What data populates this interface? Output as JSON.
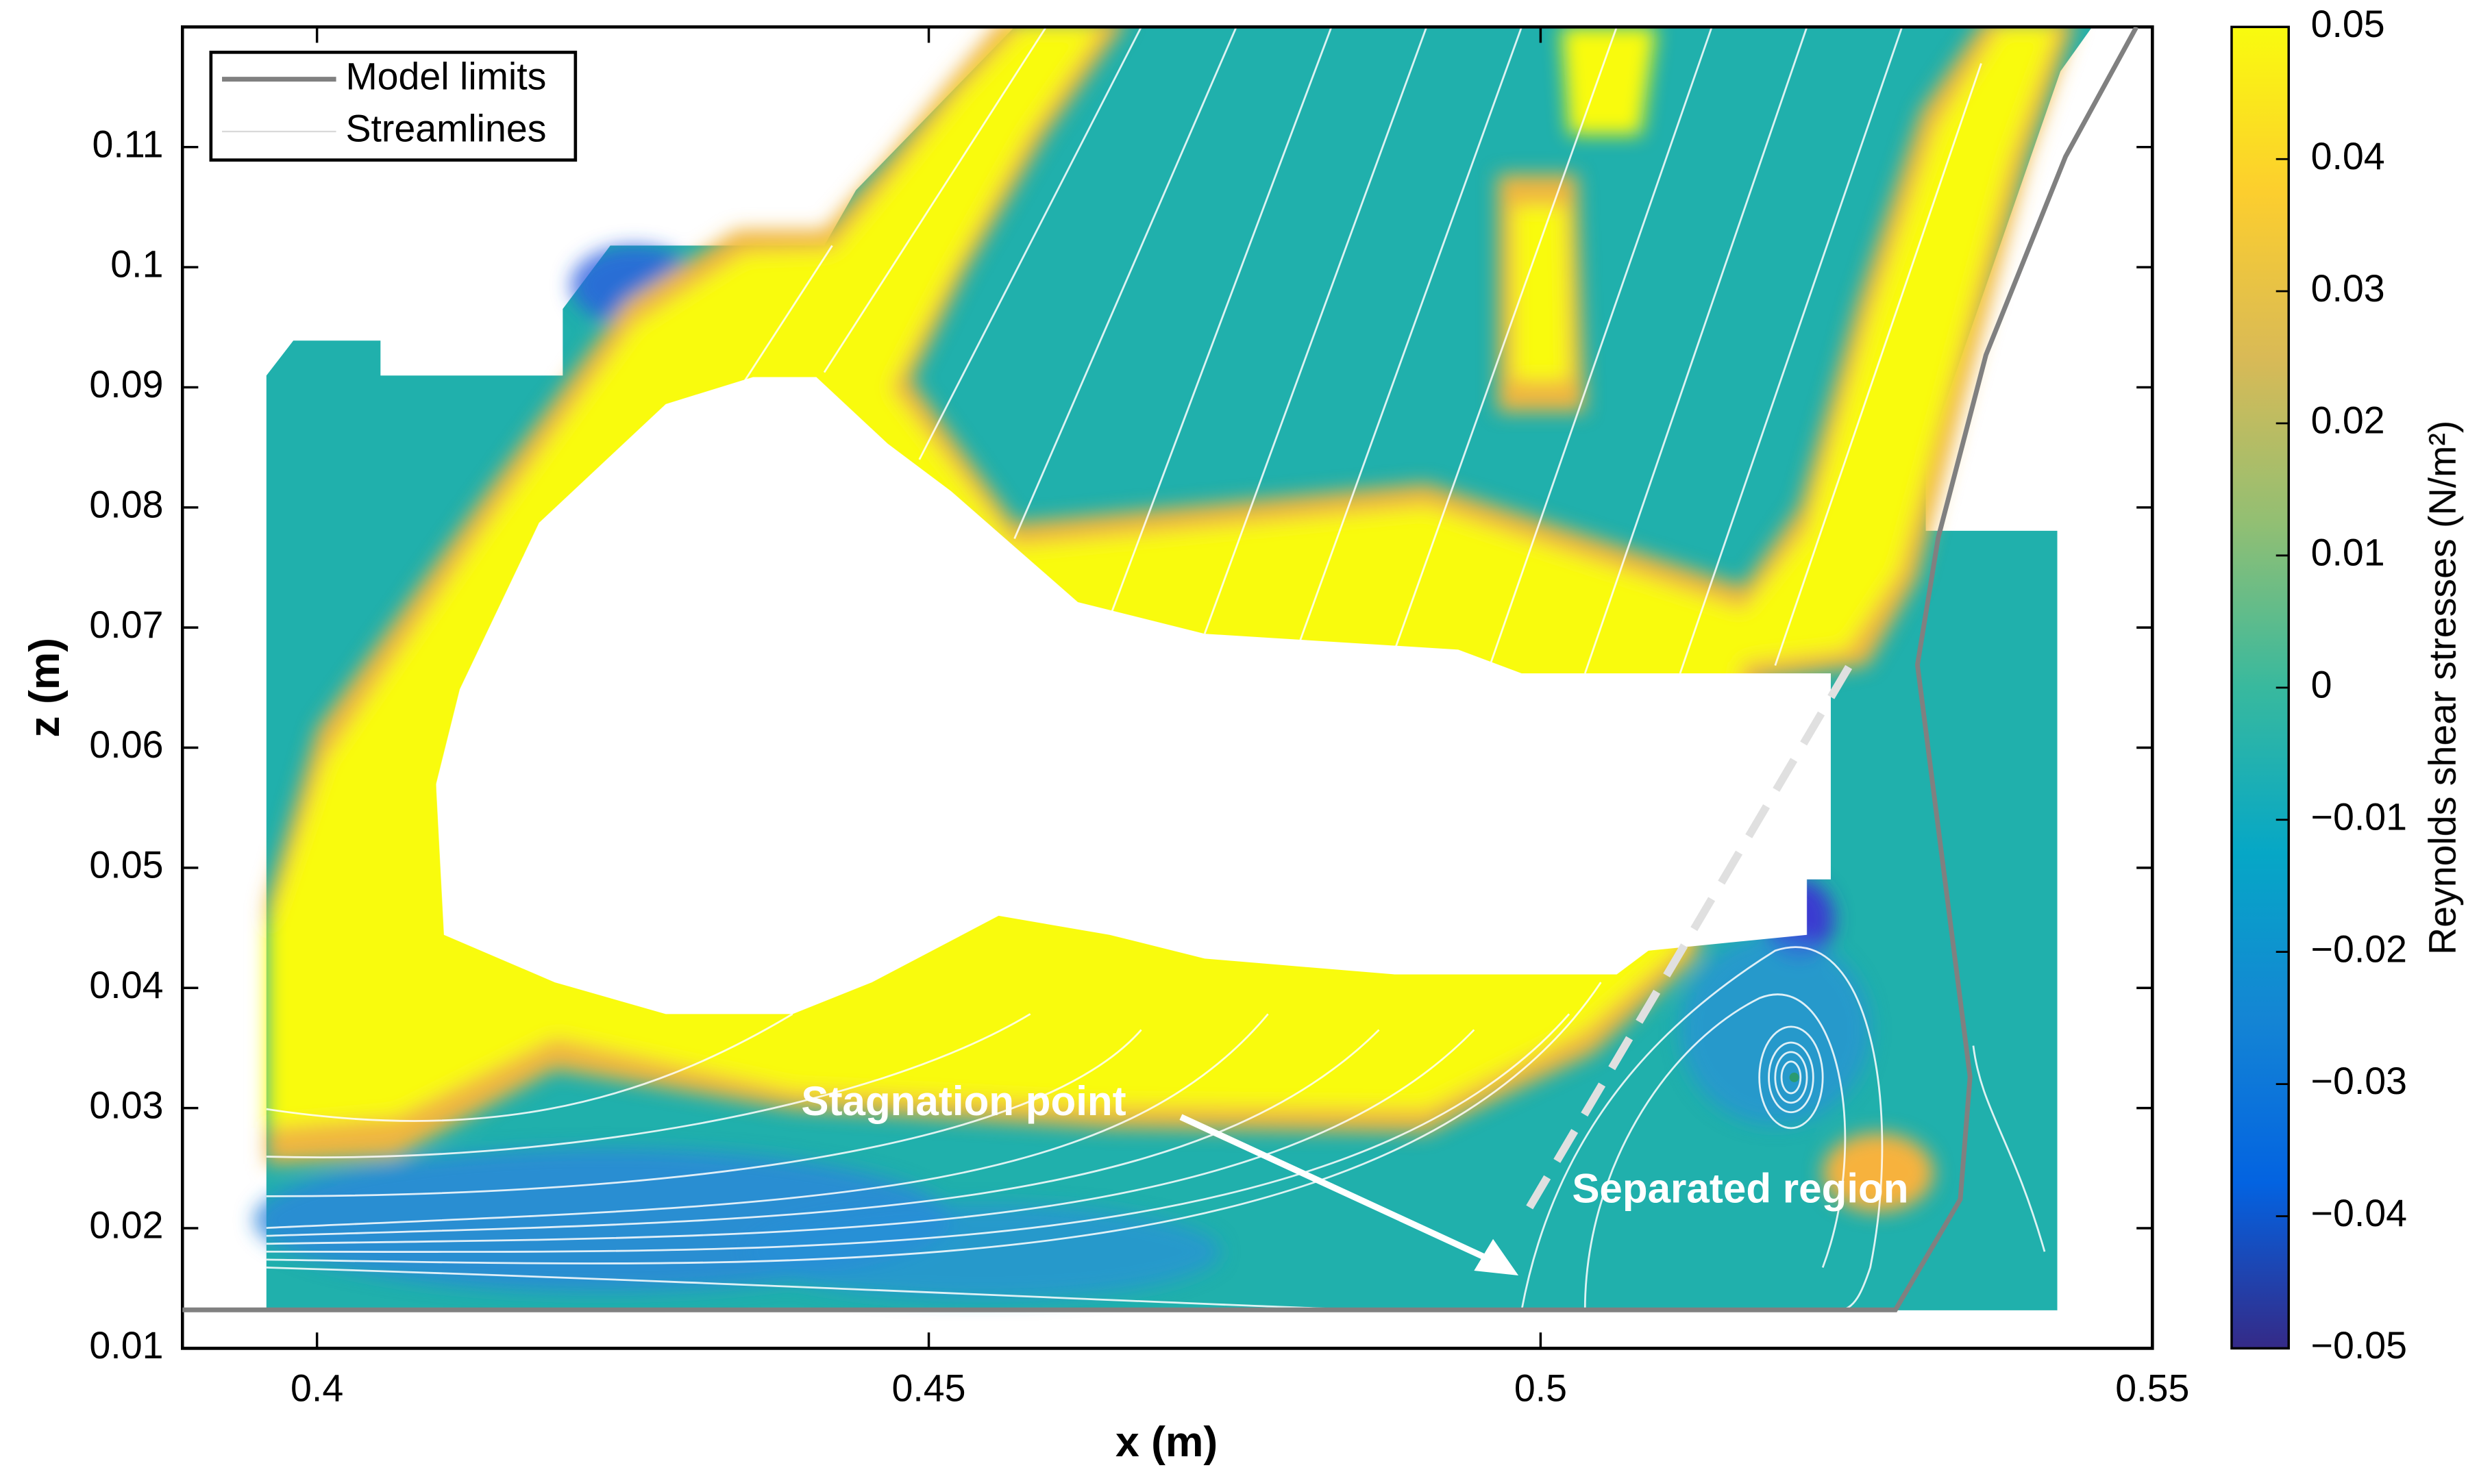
{
  "chart_data": {
    "type": "heatmap",
    "xlabel": "x (m)",
    "ylabel": "z (m)",
    "xlim": [
      0.389,
      0.55
    ],
    "xticks": [
      0.4,
      0.45,
      0.5,
      0.55
    ],
    "ylim": [
      0.01,
      0.12
    ],
    "yticks": [
      0.01,
      0.02,
      0.03,
      0.04,
      0.05,
      0.06,
      0.07,
      0.08,
      0.09,
      0.1,
      0.11
    ],
    "colorbar": {
      "label": "Reynolds shear stresses (N/m²)",
      "clim": [
        -0.05,
        0.05
      ],
      "ticks": [
        {
          "value": -0.05,
          "label": "−0.05"
        },
        {
          "value": -0.04,
          "label": "−0.04"
        },
        {
          "value": -0.03,
          "label": "−0.03"
        },
        {
          "value": -0.02,
          "label": "−0.02"
        },
        {
          "value": -0.01,
          "label": "−0.01"
        },
        0,
        0.01,
        0.02,
        0.03,
        0.04,
        0.05
      ],
      "colormap": [
        "#352a87",
        "#0363e1",
        "#1485d4",
        "#06a7c6",
        "#38b99e",
        "#92bf73",
        "#d9ba56",
        "#fcce2e",
        "#f9fb0e"
      ]
    },
    "series": [
      {
        "name": "Model limits",
        "color": "#808080",
        "x": [
          0.389,
          0.529,
          0.5343,
          0.5351,
          0.5308,
          0.5325,
          0.5364,
          0.5429,
          0.5487
        ],
        "values": [
          0.0132,
          0.0132,
          0.0224,
          0.0326,
          0.0669,
          0.0775,
          0.0927,
          0.1092,
          0.12
        ]
      }
    ],
    "streamlines": {
      "name": "Streamlines",
      "color": "#d9d9d9"
    },
    "annotations": [
      "Stagnation point",
      "Separated region"
    ]
  }
}
